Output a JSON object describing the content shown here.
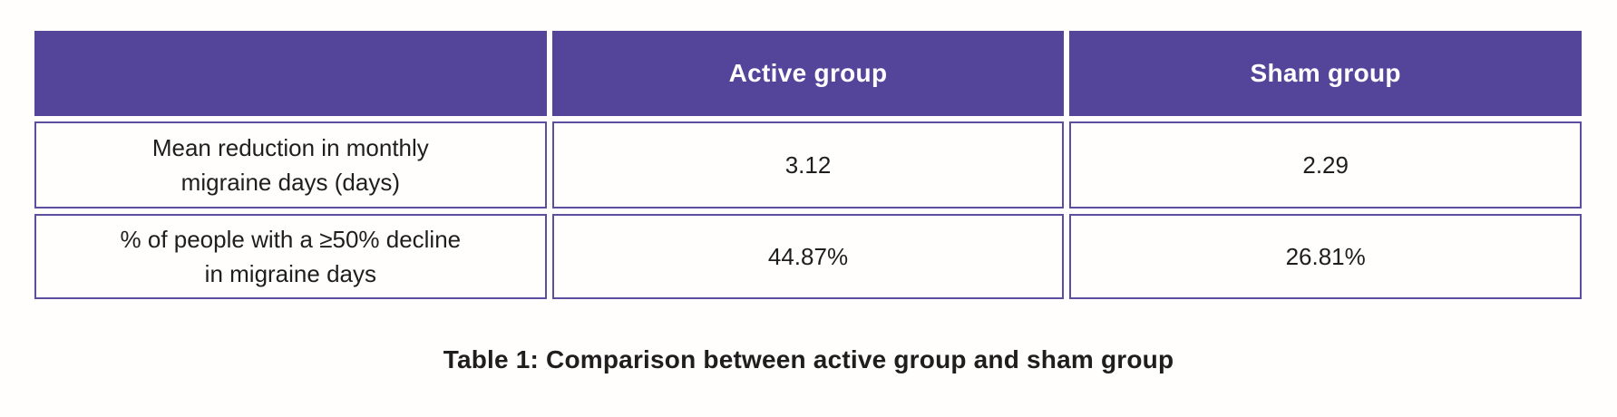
{
  "chart_data": {
    "type": "table",
    "title": "Table 1: Comparison between active group and sham group",
    "columns": [
      "",
      "Active group",
      "Sham group"
    ],
    "rows": [
      {
        "metric": "Mean reduction in monthly migraine days (days)",
        "lines": [
          "Mean reduction in monthly",
          "migraine days (days)"
        ],
        "active": "3.12",
        "sham": "2.29"
      },
      {
        "metric": "% of people with a ≥50% decline in migraine days",
        "lines": [
          "% of people with a ≥50% decline",
          "in migraine days"
        ],
        "active": "44.87%",
        "sham": "26.81%"
      }
    ],
    "layout": {
      "header_style": "solid purple fill, white bold text",
      "body_style": "white cells with purple borders, centered text",
      "caption_position": "below table, centered"
    }
  },
  "colors": {
    "header_bg": "#54459b",
    "border": "#5c4f9f",
    "text": "#1e1e1e",
    "header_text": "#ffffff",
    "page_bg": "#fffefc"
  }
}
